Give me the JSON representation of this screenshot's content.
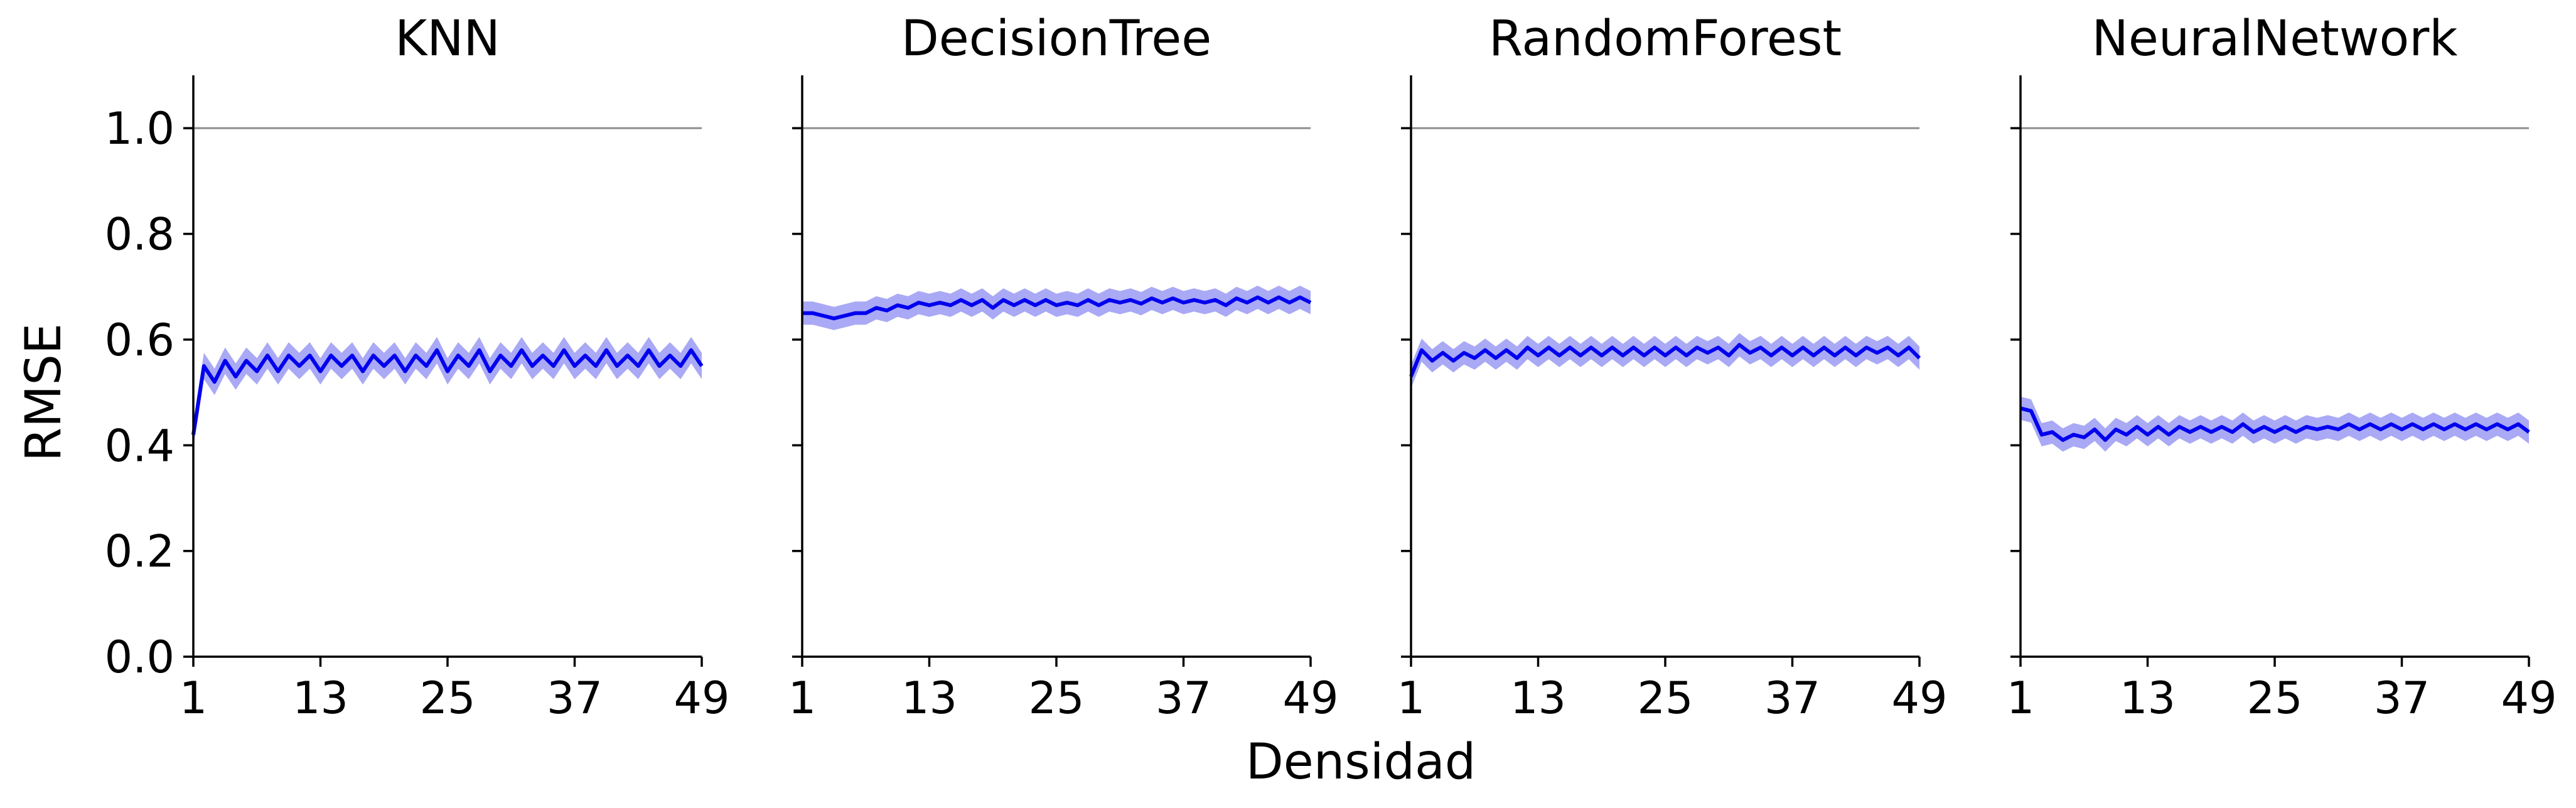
{
  "figure": {
    "shared_xlabel": "Densidad",
    "shared_ylabel": "RMSE"
  },
  "colors": {
    "line": "#0000ee",
    "band": "#8c8cf2",
    "reference": "#8c8c8c",
    "axis": "#000000"
  },
  "chart_data": [
    {
      "type": "line",
      "title": "KNN",
      "xlabel": "Densidad",
      "ylabel": "RMSE",
      "xlim": [
        1,
        49
      ],
      "ylim": [
        0.0,
        1.1
      ],
      "xticks": [
        "1",
        "13",
        "25",
        "37",
        "49"
      ],
      "yticks": [
        "0.0",
        "0.2",
        "0.4",
        "0.6",
        "0.8",
        "1.0"
      ],
      "reference_line": 1.0,
      "grid": false,
      "x": [
        1,
        2,
        3,
        4,
        5,
        6,
        7,
        8,
        9,
        10,
        11,
        12,
        13,
        14,
        15,
        16,
        17,
        18,
        19,
        20,
        21,
        22,
        23,
        24,
        25,
        26,
        27,
        28,
        29,
        30,
        31,
        32,
        33,
        34,
        35,
        36,
        37,
        38,
        39,
        40,
        41,
        42,
        43,
        44,
        45,
        46,
        47,
        48,
        49
      ],
      "series": [
        {
          "values": [
            0.42,
            0.55,
            0.52,
            0.56,
            0.53,
            0.56,
            0.54,
            0.57,
            0.54,
            0.57,
            0.55,
            0.57,
            0.54,
            0.57,
            0.55,
            0.57,
            0.54,
            0.57,
            0.55,
            0.57,
            0.54,
            0.57,
            0.55,
            0.58,
            0.54,
            0.57,
            0.55,
            0.58,
            0.54,
            0.57,
            0.55,
            0.58,
            0.55,
            0.57,
            0.55,
            0.58,
            0.55,
            0.57,
            0.55,
            0.58,
            0.55,
            0.57,
            0.55,
            0.58,
            0.55,
            0.57,
            0.55,
            0.58,
            0.55
          ],
          "band_halfwidth": 0.025
        }
      ]
    },
    {
      "type": "line",
      "title": "DecisionTree",
      "xlabel": "Densidad",
      "ylabel": "RMSE",
      "xlim": [
        1,
        49
      ],
      "ylim": [
        0.0,
        1.1
      ],
      "xticks": [
        "1",
        "13",
        "25",
        "37",
        "49"
      ],
      "yticks": [
        "0.0",
        "0.2",
        "0.4",
        "0.6",
        "0.8",
        "1.0"
      ],
      "reference_line": 1.0,
      "grid": false,
      "x": [
        1,
        2,
        3,
        4,
        5,
        6,
        7,
        8,
        9,
        10,
        11,
        12,
        13,
        14,
        15,
        16,
        17,
        18,
        19,
        20,
        21,
        22,
        23,
        24,
        25,
        26,
        27,
        28,
        29,
        30,
        31,
        32,
        33,
        34,
        35,
        36,
        37,
        38,
        39,
        40,
        41,
        42,
        43,
        44,
        45,
        46,
        47,
        48,
        49
      ],
      "series": [
        {
          "values": [
            0.65,
            0.65,
            0.645,
            0.64,
            0.645,
            0.65,
            0.65,
            0.66,
            0.655,
            0.665,
            0.66,
            0.67,
            0.665,
            0.67,
            0.665,
            0.675,
            0.665,
            0.675,
            0.66,
            0.675,
            0.665,
            0.675,
            0.665,
            0.675,
            0.665,
            0.67,
            0.665,
            0.675,
            0.665,
            0.675,
            0.67,
            0.675,
            0.668,
            0.678,
            0.67,
            0.678,
            0.67,
            0.675,
            0.67,
            0.675,
            0.665,
            0.678,
            0.67,
            0.68,
            0.67,
            0.68,
            0.67,
            0.68,
            0.67
          ],
          "band_halfwidth": 0.022
        }
      ]
    },
    {
      "type": "line",
      "title": "RandomForest",
      "xlabel": "Densidad",
      "ylabel": "RMSE",
      "xlim": [
        1,
        49
      ],
      "ylim": [
        0.0,
        1.1
      ],
      "xticks": [
        "1",
        "13",
        "25",
        "37",
        "49"
      ],
      "yticks": [
        "0.0",
        "0.2",
        "0.4",
        "0.6",
        "0.8",
        "1.0"
      ],
      "reference_line": 1.0,
      "grid": false,
      "x": [
        1,
        2,
        3,
        4,
        5,
        6,
        7,
        8,
        9,
        10,
        11,
        12,
        13,
        14,
        15,
        16,
        17,
        18,
        19,
        20,
        21,
        22,
        23,
        24,
        25,
        26,
        27,
        28,
        29,
        30,
        31,
        32,
        33,
        34,
        35,
        36,
        37,
        38,
        39,
        40,
        41,
        42,
        43,
        44,
        45,
        46,
        47,
        48,
        49
      ],
      "series": [
        {
          "values": [
            0.53,
            0.58,
            0.56,
            0.575,
            0.56,
            0.575,
            0.565,
            0.58,
            0.565,
            0.58,
            0.565,
            0.585,
            0.57,
            0.585,
            0.57,
            0.585,
            0.57,
            0.585,
            0.57,
            0.585,
            0.57,
            0.585,
            0.57,
            0.585,
            0.57,
            0.585,
            0.57,
            0.585,
            0.575,
            0.585,
            0.57,
            0.59,
            0.575,
            0.585,
            0.57,
            0.585,
            0.57,
            0.585,
            0.57,
            0.585,
            0.57,
            0.585,
            0.57,
            0.585,
            0.575,
            0.585,
            0.57,
            0.585,
            0.565
          ],
          "band_halfwidth": 0.022
        }
      ]
    },
    {
      "type": "line",
      "title": "NeuralNetwork",
      "xlabel": "Densidad",
      "ylabel": "RMSE",
      "xlim": [
        1,
        49
      ],
      "ylim": [
        0.0,
        1.1
      ],
      "xticks": [
        "1",
        "13",
        "25",
        "37",
        "49"
      ],
      "yticks": [
        "0.0",
        "0.2",
        "0.4",
        "0.6",
        "0.8",
        "1.0"
      ],
      "reference_line": 1.0,
      "grid": false,
      "x": [
        1,
        2,
        3,
        4,
        5,
        6,
        7,
        8,
        9,
        10,
        11,
        12,
        13,
        14,
        15,
        16,
        17,
        18,
        19,
        20,
        21,
        22,
        23,
        24,
        25,
        26,
        27,
        28,
        29,
        30,
        31,
        32,
        33,
        34,
        35,
        36,
        37,
        38,
        39,
        40,
        41,
        42,
        43,
        44,
        45,
        46,
        47,
        48,
        49
      ],
      "series": [
        {
          "values": [
            0.47,
            0.465,
            0.42,
            0.425,
            0.41,
            0.42,
            0.415,
            0.43,
            0.41,
            0.43,
            0.42,
            0.435,
            0.42,
            0.435,
            0.42,
            0.435,
            0.425,
            0.435,
            0.425,
            0.435,
            0.425,
            0.44,
            0.425,
            0.435,
            0.425,
            0.435,
            0.425,
            0.435,
            0.43,
            0.435,
            0.43,
            0.44,
            0.43,
            0.44,
            0.43,
            0.44,
            0.43,
            0.44,
            0.43,
            0.44,
            0.43,
            0.44,
            0.43,
            0.44,
            0.43,
            0.44,
            0.43,
            0.44,
            0.425
          ],
          "band_halfwidth": 0.022
        }
      ]
    }
  ]
}
